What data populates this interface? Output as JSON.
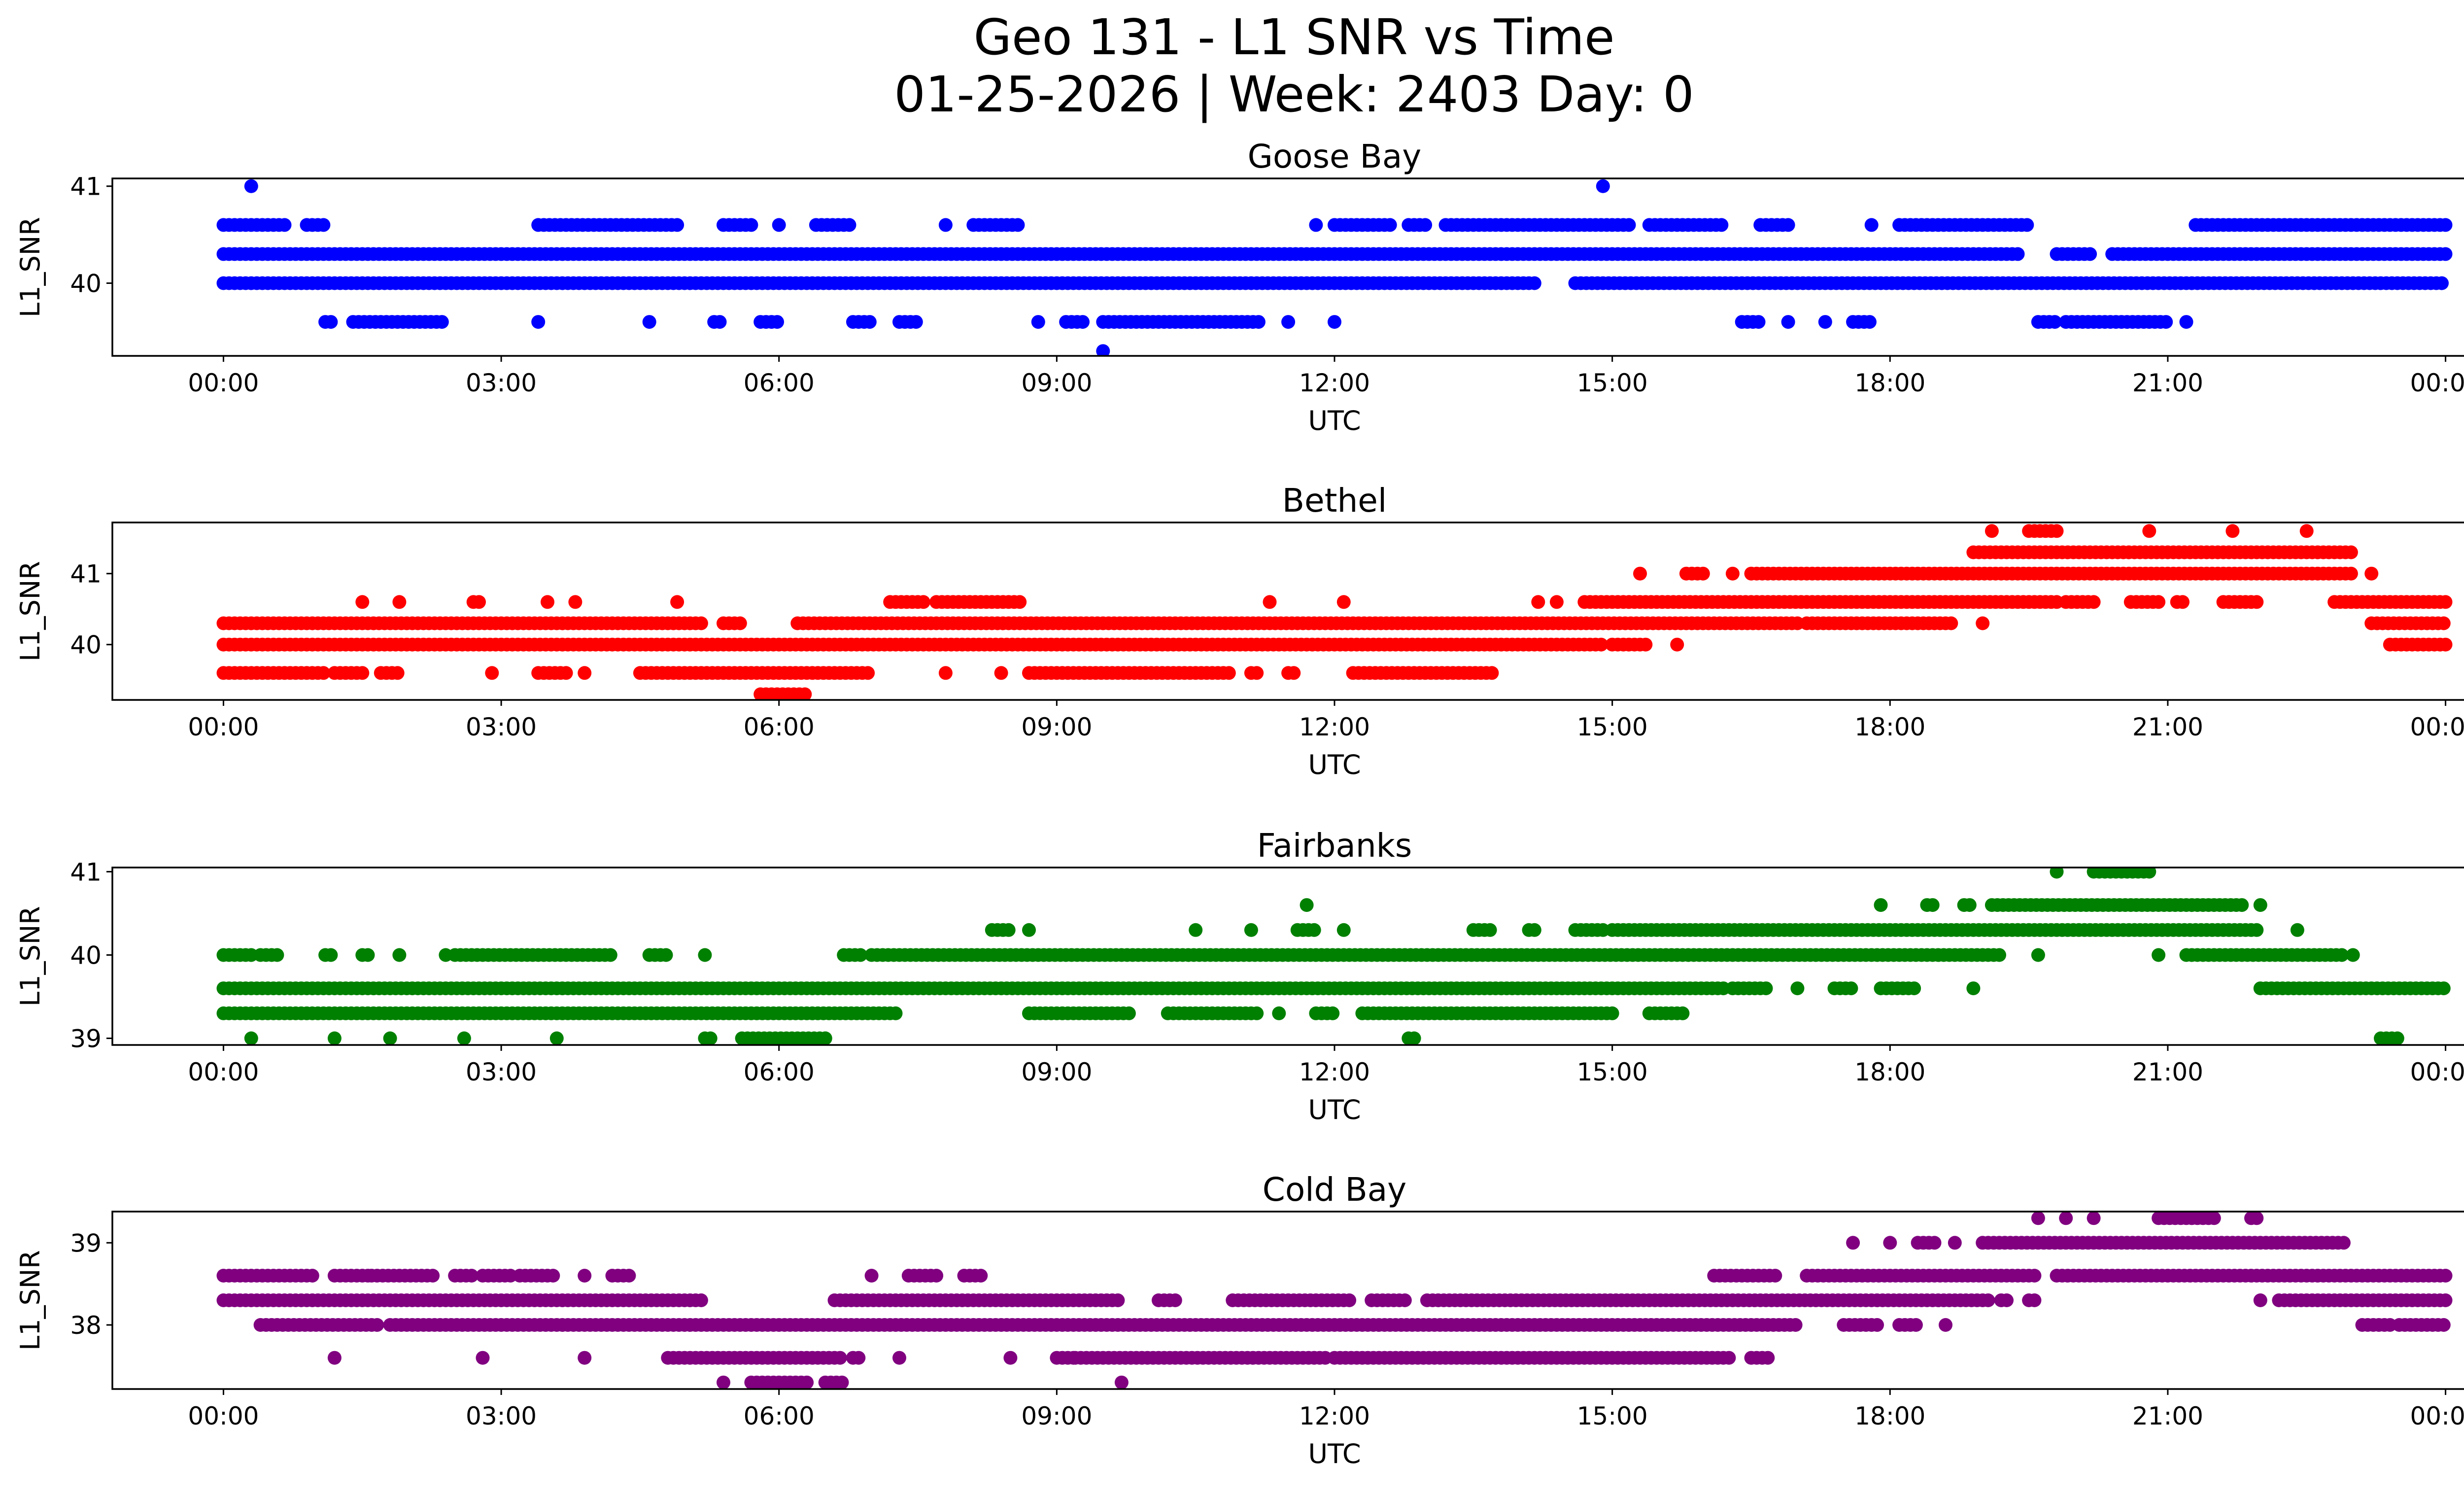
{
  "figure": {
    "title_line1": "Geo 131 - L1 SNR vs Time",
    "title_line2": "01-25-2026 | Week: 2403 Day: 0"
  },
  "chart_data": [
    {
      "type": "scatter",
      "title": "Goose Bay",
      "xlabel": "UTC",
      "ylabel": "L1_SNR",
      "color": "#0000ff",
      "xlim": [
        -1.2,
        25.2
      ],
      "ylim": [
        39.25,
        41.08
      ],
      "x_ticks": [
        0,
        3,
        6,
        9,
        12,
        15,
        18,
        21,
        24
      ],
      "x_tick_labels": [
        "00:00",
        "03:00",
        "06:00",
        "09:00",
        "12:00",
        "15:00",
        "18:00",
        "21:00",
        "00:00"
      ],
      "y_ticks": [
        40,
        41
      ],
      "y_tick_labels": [
        "40",
        "41"
      ],
      "levels": [
        39.3,
        39.6,
        40.0,
        40.3,
        40.6,
        41.0
      ],
      "segments": [
        {
          "level": 40.0,
          "ranges": [
            [
              0.0,
              14.2
            ],
            [
              14.6,
              24.0
            ]
          ]
        },
        {
          "level": 40.3,
          "ranges": [
            [
              0.0,
              19.4
            ],
            [
              19.8,
              20.2
            ],
            [
              20.4,
              24.0
            ]
          ]
        },
        {
          "level": 40.6,
          "ranges": [
            [
              0.0,
              0.7
            ],
            [
              0.9,
              1.1
            ],
            [
              3.4,
              4.9
            ],
            [
              5.4,
              5.7
            ],
            [
              6.0,
              6.0
            ],
            [
              6.4,
              6.8
            ],
            [
              7.8,
              7.8
            ],
            [
              8.1,
              8.6
            ],
            [
              11.8,
              11.8
            ],
            [
              12.0,
              12.6
            ],
            [
              12.8,
              13.0
            ],
            [
              13.2,
              15.2
            ],
            [
              15.4,
              16.2
            ],
            [
              16.6,
              16.9
            ],
            [
              17.8,
              17.8
            ],
            [
              18.1,
              19.5
            ],
            [
              21.3,
              24.0
            ]
          ]
        },
        {
          "level": 39.6,
          "ranges": [
            [
              1.1,
              1.2
            ],
            [
              1.4,
              2.4
            ],
            [
              3.4,
              3.4
            ],
            [
              4.6,
              4.6
            ],
            [
              5.3,
              5.4
            ],
            [
              5.8,
              6.0
            ],
            [
              6.8,
              7.0
            ],
            [
              7.3,
              7.5
            ],
            [
              8.8,
              8.8
            ],
            [
              9.1,
              9.3
            ],
            [
              9.5,
              11.2
            ],
            [
              11.5,
              11.5
            ],
            [
              12.0,
              12.0
            ],
            [
              16.4,
              16.6
            ],
            [
              16.9,
              16.9
            ],
            [
              17.3,
              17.3
            ],
            [
              17.6,
              17.8
            ],
            [
              19.6,
              19.8
            ],
            [
              19.9,
              21.0
            ],
            [
              21.2,
              21.2
            ]
          ]
        },
        {
          "level": 41.0,
          "ranges": [
            [
              0.3,
              0.3
            ],
            [
              14.9,
              14.9
            ]
          ]
        },
        {
          "level": 39.3,
          "ranges": [
            [
              9.5,
              9.5
            ]
          ]
        }
      ]
    },
    {
      "type": "scatter",
      "title": "Bethel",
      "xlabel": "UTC",
      "ylabel": "L1_SNR",
      "color": "#ff0000",
      "xlim": [
        -1.2,
        25.2
      ],
      "ylim": [
        39.22,
        41.72
      ],
      "x_ticks": [
        0,
        3,
        6,
        9,
        12,
        15,
        18,
        21,
        24
      ],
      "x_tick_labels": [
        "00:00",
        "03:00",
        "06:00",
        "09:00",
        "12:00",
        "15:00",
        "18:00",
        "21:00",
        "00:00"
      ],
      "y_ticks": [
        40,
        41
      ],
      "y_tick_labels": [
        "40",
        "41"
      ],
      "levels": [
        39.3,
        39.6,
        40.0,
        40.3,
        40.6,
        41.0,
        41.3,
        41.6
      ],
      "segments": [
        {
          "level": 40.0,
          "ranges": [
            [
              0.0,
              14.9
            ],
            [
              15.0,
              15.4
            ],
            [
              15.7,
              15.7
            ],
            [
              23.4,
              24.0
            ]
          ]
        },
        {
          "level": 40.3,
          "ranges": [
            [
              0.0,
              5.2
            ],
            [
              5.4,
              5.6
            ],
            [
              6.2,
              17.0
            ],
            [
              17.1,
              18.7
            ],
            [
              19.0,
              19.0
            ],
            [
              23.2,
              24.0
            ]
          ]
        },
        {
          "level": 39.6,
          "ranges": [
            [
              0.0,
              1.1
            ],
            [
              1.2,
              1.5
            ],
            [
              1.7,
              1.9
            ],
            [
              2.9,
              2.9
            ],
            [
              3.4,
              3.7
            ],
            [
              3.9,
              3.9
            ],
            [
              4.5,
              7.0
            ],
            [
              7.8,
              7.8
            ],
            [
              8.4,
              8.4
            ],
            [
              8.7,
              10.9
            ],
            [
              11.1,
              11.2
            ],
            [
              11.5,
              11.6
            ],
            [
              12.2,
              13.7
            ]
          ]
        },
        {
          "level": 40.6,
          "ranges": [
            [
              1.5,
              1.5
            ],
            [
              1.9,
              1.9
            ],
            [
              2.7,
              2.8
            ],
            [
              3.5,
              3.5
            ],
            [
              3.8,
              3.8
            ],
            [
              4.9,
              4.9
            ],
            [
              7.2,
              7.6
            ],
            [
              7.7,
              8.6
            ],
            [
              11.3,
              11.3
            ],
            [
              12.1,
              12.1
            ],
            [
              14.2,
              14.2
            ],
            [
              14.4,
              14.4
            ],
            [
              14.7,
              19.8
            ],
            [
              19.9,
              20.2
            ],
            [
              20.6,
              20.9
            ],
            [
              21.1,
              21.2
            ],
            [
              21.6,
              22.0
            ],
            [
              22.8,
              24.0
            ]
          ]
        },
        {
          "level": 41.0,
          "ranges": [
            [
              15.3,
              15.3
            ],
            [
              15.8,
              16.0
            ],
            [
              16.3,
              16.3
            ],
            [
              16.5,
              23.0
            ],
            [
              23.2,
              23.2
            ]
          ]
        },
        {
          "level": 41.3,
          "ranges": [
            [
              18.9,
              23.0
            ]
          ]
        },
        {
          "level": 41.6,
          "ranges": [
            [
              19.1,
              19.1
            ],
            [
              19.5,
              19.8
            ],
            [
              20.8,
              20.8
            ],
            [
              21.7,
              21.7
            ],
            [
              22.5,
              22.5
            ]
          ]
        },
        {
          "level": 39.3,
          "ranges": [
            [
              5.8,
              6.3
            ]
          ]
        }
      ]
    },
    {
      "type": "scatter",
      "title": "Fairbanks",
      "xlabel": "UTC",
      "ylabel": "L1_SNR",
      "color": "#008000",
      "xlim": [
        -1.2,
        25.2
      ],
      "ylim": [
        38.92,
        41.05
      ],
      "x_ticks": [
        0,
        3,
        6,
        9,
        12,
        15,
        18,
        21,
        24
      ],
      "x_tick_labels": [
        "00:00",
        "03:00",
        "06:00",
        "09:00",
        "12:00",
        "15:00",
        "18:00",
        "21:00",
        "00:00"
      ],
      "y_ticks": [
        39,
        40,
        41
      ],
      "y_tick_labels": [
        "39",
        "40",
        "41"
      ],
      "levels": [
        39.0,
        39.3,
        39.6,
        40.0,
        40.3,
        40.6,
        41.0
      ],
      "segments": [
        {
          "level": 39.6,
          "ranges": [
            [
              0.0,
              16.2
            ],
            [
              16.3,
              16.7
            ],
            [
              17.0,
              17.0
            ],
            [
              17.4,
              17.6
            ],
            [
              17.9,
              18.3
            ],
            [
              18.9,
              18.9
            ],
            [
              22.0,
              24.0
            ]
          ]
        },
        {
          "level": 39.3,
          "ranges": [
            [
              0.0,
              7.3
            ],
            [
              8.7,
              9.8
            ],
            [
              10.2,
              11.2
            ],
            [
              11.4,
              11.4
            ],
            [
              11.8,
              12.0
            ],
            [
              12.3,
              15.0
            ],
            [
              15.4,
              15.8
            ]
          ]
        },
        {
          "level": 40.0,
          "ranges": [
            [
              0.0,
              0.3
            ],
            [
              0.4,
              0.6
            ],
            [
              1.1,
              1.2
            ],
            [
              1.5,
              1.6
            ],
            [
              1.9,
              1.9
            ],
            [
              2.4,
              2.4
            ],
            [
              2.5,
              4.2
            ],
            [
              4.6,
              4.8
            ],
            [
              5.2,
              5.2
            ],
            [
              6.7,
              6.9
            ],
            [
              7.0,
              19.2
            ],
            [
              19.6,
              19.6
            ],
            [
              20.9,
              20.9
            ],
            [
              21.2,
              22.9
            ],
            [
              23.0,
              23.0
            ]
          ]
        },
        {
          "level": 40.3,
          "ranges": [
            [
              8.3,
              8.5
            ],
            [
              8.7,
              8.7
            ],
            [
              10.5,
              10.5
            ],
            [
              11.1,
              11.1
            ],
            [
              11.6,
              11.8
            ],
            [
              12.1,
              12.1
            ],
            [
              13.5,
              13.7
            ],
            [
              14.1,
              14.2
            ],
            [
              14.6,
              14.9
            ],
            [
              15.0,
              22.0
            ],
            [
              22.4,
              22.4
            ]
          ]
        },
        {
          "level": 40.6,
          "ranges": [
            [
              11.7,
              11.7
            ],
            [
              17.9,
              17.9
            ],
            [
              18.4,
              18.5
            ],
            [
              18.8,
              18.9
            ],
            [
              19.1,
              21.8
            ],
            [
              22.0,
              22.0
            ]
          ]
        },
        {
          "level": 41.0,
          "ranges": [
            [
              19.8,
              19.8
            ],
            [
              20.2,
              20.8
            ]
          ]
        },
        {
          "level": 39.0,
          "ranges": [
            [
              0.3,
              0.3
            ],
            [
              1.2,
              1.2
            ],
            [
              1.8,
              1.8
            ],
            [
              2.6,
              2.6
            ],
            [
              3.6,
              3.6
            ],
            [
              5.2,
              5.3
            ],
            [
              5.6,
              6.5
            ],
            [
              6.5,
              6.5
            ],
            [
              12.8,
              12.9
            ],
            [
              23.3,
              23.5
            ]
          ]
        }
      ]
    },
    {
      "type": "scatter",
      "title": "Cold Bay",
      "xlabel": "UTC",
      "ylabel": "L1_SNR",
      "color": "#800080",
      "xlim": [
        -1.2,
        25.2
      ],
      "ylim": [
        37.22,
        39.38
      ],
      "x_ticks": [
        0,
        3,
        6,
        9,
        12,
        15,
        18,
        21,
        24
      ],
      "x_tick_labels": [
        "00:00",
        "03:00",
        "06:00",
        "09:00",
        "12:00",
        "15:00",
        "18:00",
        "21:00",
        "00:00"
      ],
      "y_ticks": [
        38,
        39
      ],
      "y_tick_labels": [
        "38",
        "39"
      ],
      "levels": [
        37.3,
        37.6,
        38.0,
        38.3,
        38.6,
        39.0,
        39.3
      ],
      "segments": [
        {
          "level": 38.6,
          "ranges": [
            [
              0.0,
              1.0
            ],
            [
              1.2,
              1.6
            ],
            [
              1.6,
              2.3
            ],
            [
              2.5,
              2.7
            ],
            [
              2.8,
              3.1
            ],
            [
              3.2,
              3.6
            ],
            [
              3.9,
              3.9
            ],
            [
              4.2,
              4.4
            ],
            [
              7.0,
              7.0
            ],
            [
              7.4,
              7.7
            ],
            [
              8.0,
              8.2
            ],
            [
              16.1,
              16.8
            ],
            [
              17.1,
              19.6
            ],
            [
              19.8,
              24.0
            ]
          ]
        },
        {
          "level": 38.3,
          "ranges": [
            [
              0.0,
              5.2
            ],
            [
              6.6,
              9.7
            ],
            [
              10.1,
              10.3
            ],
            [
              10.9,
              12.2
            ],
            [
              12.4,
              12.8
            ],
            [
              13.0,
              19.1
            ],
            [
              19.2,
              19.3
            ],
            [
              19.5,
              19.6
            ],
            [
              22.0,
              22.0
            ],
            [
              22.2,
              24.0
            ]
          ]
        },
        {
          "level": 38.0,
          "ranges": [
            [
              0.4,
              1.7
            ],
            [
              1.8,
              17.0
            ],
            [
              17.5,
              17.9
            ],
            [
              18.1,
              18.3
            ],
            [
              18.6,
              18.6
            ],
            [
              23.1,
              23.4
            ],
            [
              23.5,
              24.0
            ]
          ]
        },
        {
          "level": 37.6,
          "ranges": [
            [
              1.2,
              1.2
            ],
            [
              2.8,
              2.8
            ],
            [
              3.9,
              3.9
            ],
            [
              4.8,
              6.7
            ],
            [
              6.8,
              6.9
            ],
            [
              7.3,
              7.3
            ],
            [
              8.5,
              8.5
            ],
            [
              9.0,
              9.2
            ],
            [
              9.2,
              11.9
            ],
            [
              12.0,
              16.3
            ],
            [
              16.5,
              16.7
            ]
          ]
        },
        {
          "level": 39.0,
          "ranges": [
            [
              17.6,
              17.6
            ],
            [
              18.0,
              18.0
            ],
            [
              18.3,
              18.5
            ],
            [
              18.7,
              18.7
            ],
            [
              19.0,
              22.9
            ]
          ]
        },
        {
          "level": 39.3,
          "ranges": [
            [
              19.6,
              19.6
            ],
            [
              19.9,
              19.9
            ],
            [
              20.2,
              20.2
            ],
            [
              20.9,
              21.5
            ],
            [
              21.9,
              22.0
            ]
          ]
        },
        {
          "level": 37.3,
          "ranges": [
            [
              5.4,
              5.4
            ],
            [
              5.7,
              6.3
            ],
            [
              6.5,
              6.7
            ],
            [
              9.7,
              9.7
            ]
          ]
        }
      ]
    }
  ]
}
